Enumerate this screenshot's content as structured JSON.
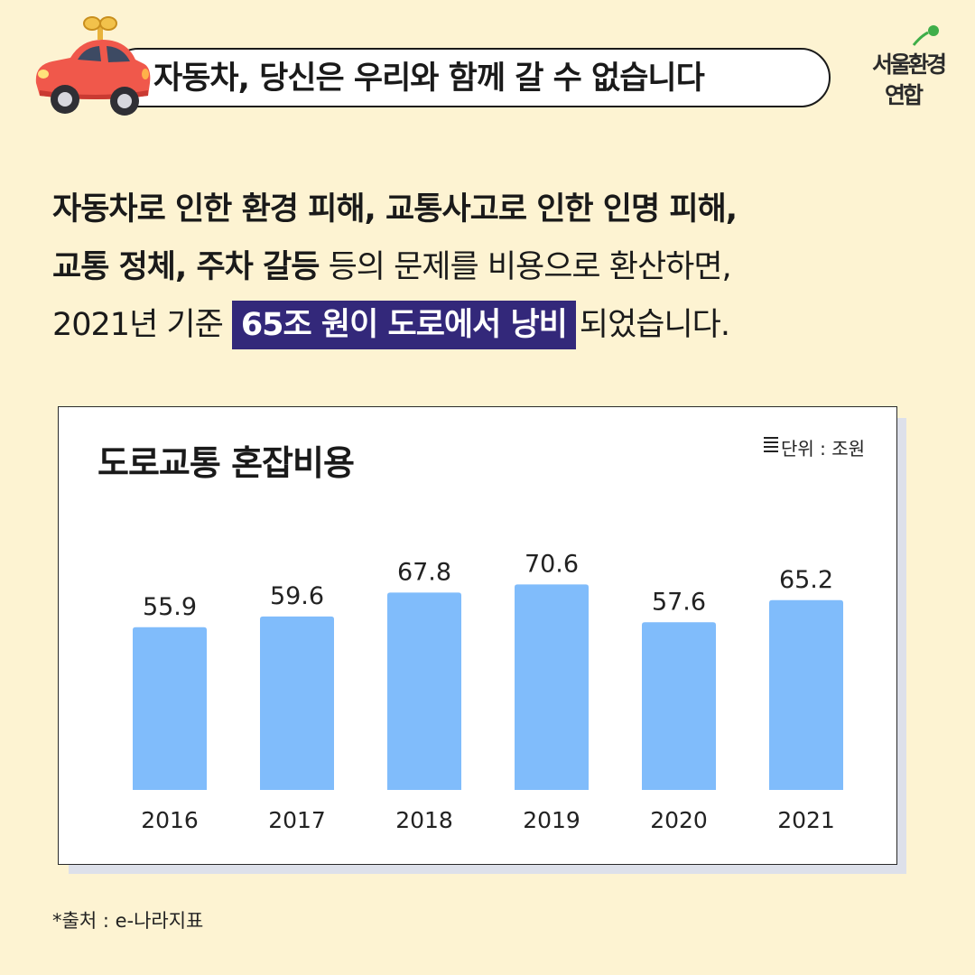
{
  "header": {
    "title": "자동차, 당신은 우리와 함께 갈 수 없습니다",
    "car_icon": "red-car-icon"
  },
  "logo": {
    "line1": "서울환경",
    "line2": "연합",
    "accent_color": "#3fae49"
  },
  "body": {
    "line1": "자동차로 인한 환경 피해, 교통사고로 인한 인명 피해,",
    "line2_bold": "교통 정체, 주차 갈등",
    "line2_rest": " 등의 문제를 비용으로 환산하면,",
    "line3_start": "2021년 기준",
    "line3_highlight": "65조 원이 도로에서 낭비",
    "line3_end": "되었습니다.",
    "highlight_color": "#33287a"
  },
  "chart_data": {
    "type": "bar",
    "title": "도로교통 혼잡비용",
    "unit": "단위 : 조원",
    "unit_icon": "lines-icon",
    "categories": [
      "2016",
      "2017",
      "2018",
      "2019",
      "2020",
      "2021"
    ],
    "values": [
      55.9,
      59.6,
      67.8,
      70.6,
      57.6,
      65.2
    ],
    "data_labels": [
      "55.9",
      "59.6",
      "67.8",
      "70.6",
      "57.6",
      "65.2"
    ],
    "bar_color": "#80bcfb",
    "ylim": [
      0,
      80
    ],
    "grid": false,
    "legend": "none",
    "xlabel": "",
    "ylabel": ""
  },
  "source": "*출처 : e-나라지표"
}
